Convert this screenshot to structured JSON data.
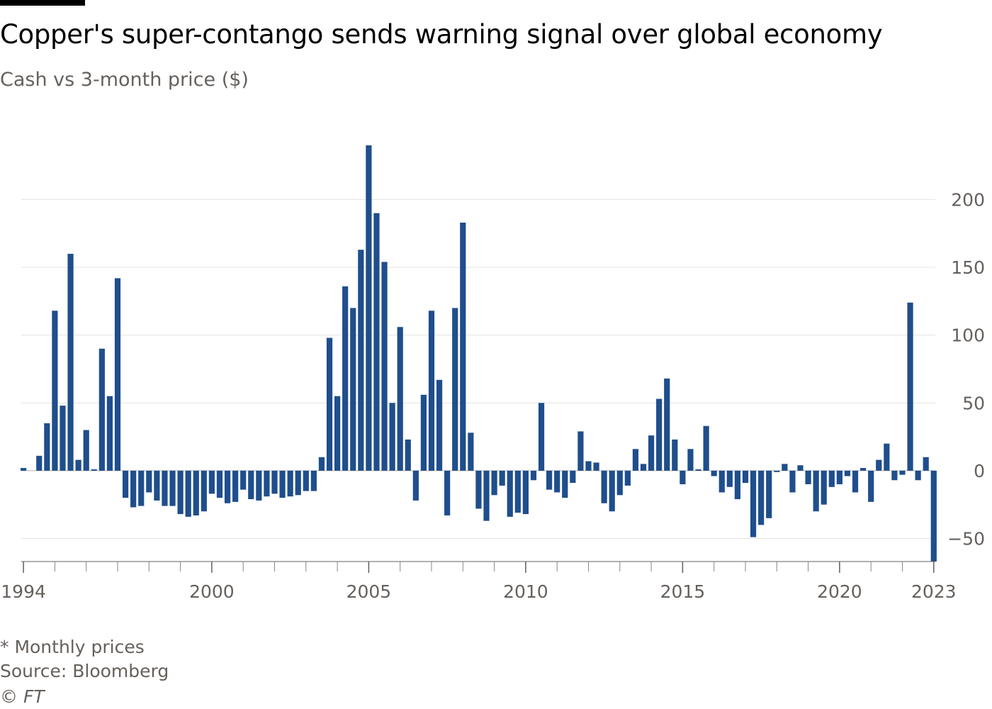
{
  "header": {
    "title": "Copper's super-contango sends warning signal over global economy",
    "subtitle": "Cash vs 3-month price ($)"
  },
  "footer": {
    "note": "* Monthly prices",
    "source": "Source: Bloomberg",
    "credit": "© FT"
  },
  "colors": {
    "bar": "#1f4e8c",
    "grid": "#e5e2df",
    "axis": "#66605c",
    "text": "#66605c"
  },
  "chart_data": {
    "type": "bar",
    "title": "Copper's super-contango sends warning signal over global economy",
    "subtitle": "Cash vs 3-month price ($)",
    "xlabel": "",
    "ylabel": "",
    "ylim": [
      -67,
      240
    ],
    "xlim": [
      1993.93,
      2023.05
    ],
    "yticks": [
      -50,
      0,
      50,
      100,
      150,
      200
    ],
    "xtick_labels": [
      "1994",
      "2000",
      "2005",
      "2010",
      "2015",
      "2020",
      "2023"
    ],
    "xtick_values": [
      1994,
      2000,
      2005,
      2010,
      2015,
      2020,
      2023
    ],
    "minor_xticks": [
      1994,
      1995,
      1996,
      1997,
      1998,
      1999,
      2000,
      2001,
      2002,
      2003,
      2004,
      2005,
      2006,
      2007,
      2008,
      2009,
      2010,
      2011,
      2012,
      2013,
      2014,
      2015,
      2016,
      2017,
      2018,
      2019,
      2020,
      2021,
      2022,
      2023
    ],
    "grid": true,
    "legend": "none",
    "series": [
      {
        "values": [
          [
            1994.0,
            2
          ],
          [
            1994.5,
            11
          ],
          [
            1994.75,
            35
          ],
          [
            1995.0,
            118
          ],
          [
            1995.25,
            48
          ],
          [
            1995.5,
            160
          ],
          [
            1995.75,
            8
          ],
          [
            1996.0,
            30
          ],
          [
            1996.25,
            1
          ],
          [
            1996.5,
            90
          ],
          [
            1996.75,
            55
          ],
          [
            1997.0,
            142
          ],
          [
            1997.25,
            -20
          ],
          [
            1997.5,
            -27
          ],
          [
            1997.75,
            -26
          ],
          [
            1998.0,
            -16
          ],
          [
            1998.25,
            -22
          ],
          [
            1998.5,
            -26
          ],
          [
            1998.75,
            -26
          ],
          [
            1999.0,
            -32
          ],
          [
            1999.25,
            -34
          ],
          [
            1999.5,
            -33
          ],
          [
            1999.75,
            -30
          ],
          [
            2000.0,
            -17
          ],
          [
            2000.25,
            -20
          ],
          [
            2000.5,
            -24
          ],
          [
            2000.75,
            -23
          ],
          [
            2001.0,
            -14
          ],
          [
            2001.25,
            -21
          ],
          [
            2001.5,
            -22
          ],
          [
            2001.75,
            -19
          ],
          [
            2002.0,
            -17
          ],
          [
            2002.25,
            -20
          ],
          [
            2002.5,
            -19
          ],
          [
            2002.75,
            -18
          ],
          [
            2003.0,
            -15
          ],
          [
            2003.25,
            -15
          ],
          [
            2003.5,
            10
          ],
          [
            2003.75,
            98
          ],
          [
            2004.0,
            55
          ],
          [
            2004.25,
            136
          ],
          [
            2004.5,
            120
          ],
          [
            2004.75,
            163
          ],
          [
            2005.0,
            240
          ],
          [
            2005.25,
            190
          ],
          [
            2005.5,
            154
          ],
          [
            2005.75,
            50
          ],
          [
            2006.0,
            106
          ],
          [
            2006.25,
            23
          ],
          [
            2006.5,
            -22
          ],
          [
            2006.75,
            56
          ],
          [
            2007.0,
            118
          ],
          [
            2007.25,
            67
          ],
          [
            2007.5,
            -33
          ],
          [
            2007.75,
            120
          ],
          [
            2008.0,
            183
          ],
          [
            2008.25,
            28
          ],
          [
            2008.5,
            -28
          ],
          [
            2008.75,
            -37
          ],
          [
            2009.0,
            -18
          ],
          [
            2009.25,
            -11
          ],
          [
            2009.5,
            -34
          ],
          [
            2009.75,
            -31
          ],
          [
            2010.0,
            -32
          ],
          [
            2010.25,
            -7
          ],
          [
            2010.5,
            50
          ],
          [
            2010.75,
            -14
          ],
          [
            2011.0,
            -16
          ],
          [
            2011.25,
            -20
          ],
          [
            2011.5,
            -9
          ],
          [
            2011.75,
            29
          ],
          [
            2012.0,
            7
          ],
          [
            2012.25,
            6
          ],
          [
            2012.5,
            -24
          ],
          [
            2012.75,
            -30
          ],
          [
            2013.0,
            -18
          ],
          [
            2013.25,
            -11
          ],
          [
            2013.5,
            16
          ],
          [
            2013.75,
            5
          ],
          [
            2014.0,
            26
          ],
          [
            2014.25,
            53
          ],
          [
            2014.5,
            68
          ],
          [
            2014.75,
            23
          ],
          [
            2015.0,
            -10
          ],
          [
            2015.25,
            16
          ],
          [
            2015.5,
            1
          ],
          [
            2015.75,
            33
          ],
          [
            2016.0,
            -4
          ],
          [
            2016.25,
            -16
          ],
          [
            2016.5,
            -12
          ],
          [
            2016.75,
            -21
          ],
          [
            2017.0,
            -9
          ],
          [
            2017.25,
            -49
          ],
          [
            2017.5,
            -40
          ],
          [
            2017.75,
            -35
          ],
          [
            2018.0,
            -1
          ],
          [
            2018.25,
            5
          ],
          [
            2018.5,
            -16
          ],
          [
            2018.75,
            4
          ],
          [
            2019.0,
            -10
          ],
          [
            2019.25,
            -30
          ],
          [
            2019.5,
            -25
          ],
          [
            2019.75,
            -12
          ],
          [
            2020.0,
            -10
          ],
          [
            2020.25,
            -4
          ],
          [
            2020.5,
            -16
          ],
          [
            2020.75,
            2
          ],
          [
            2021.0,
            -23
          ],
          [
            2021.25,
            8
          ],
          [
            2021.5,
            20
          ],
          [
            2021.75,
            -7
          ],
          [
            2022.0,
            -3
          ],
          [
            2022.25,
            124
          ],
          [
            2022.5,
            -7
          ],
          [
            2022.75,
            10
          ],
          [
            2023.0,
            -67
          ]
        ]
      }
    ]
  }
}
